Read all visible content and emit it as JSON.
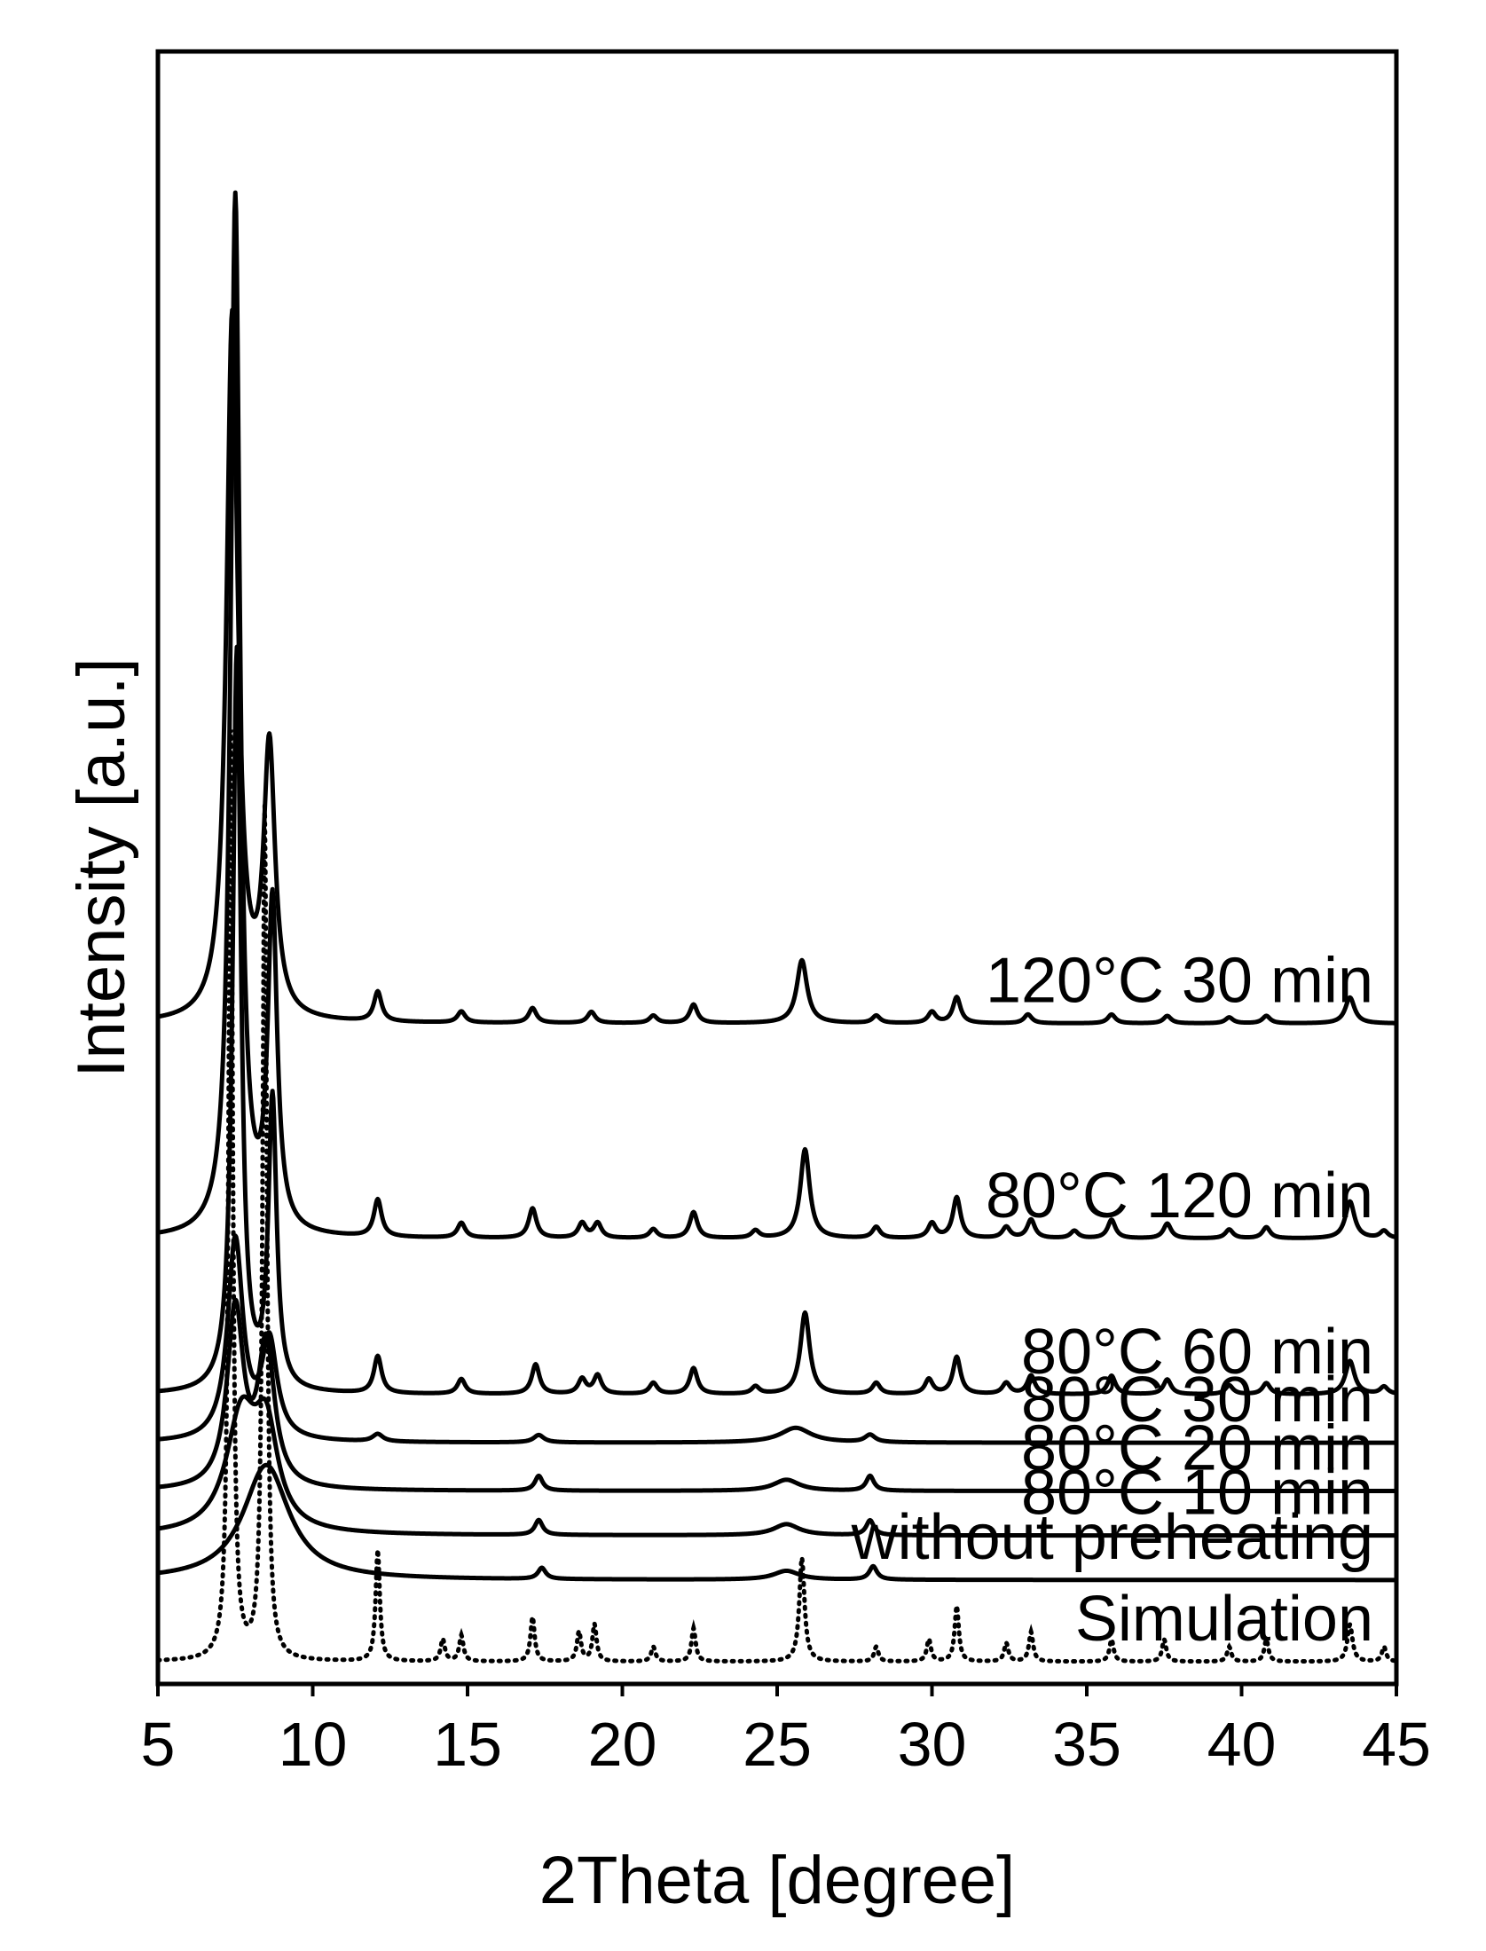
{
  "chart_data": {
    "type": "line",
    "title": "",
    "xlabel": "2Theta [degree]",
    "ylabel": "Intensity [a.u.]",
    "xlim": [
      5,
      45
    ],
    "xticks": [
      "5",
      "10",
      "15",
      "20",
      "25",
      "30",
      "35",
      "40",
      "45"
    ],
    "y_ticks_shown": false,
    "grid": false,
    "legend": "none (series labelled directly above each trace, right-aligned)",
    "series": [
      {
        "name": "120°C 30 min",
        "style": "solid",
        "baseline": 7.9,
        "peaks": [
          [
            7.4,
            9.5,
            0.22
          ],
          [
            8.6,
            3.6,
            0.22
          ],
          [
            12.1,
            0.4,
            0.15
          ],
          [
            14.8,
            0.15,
            0.15
          ],
          [
            17.1,
            0.2,
            0.15
          ],
          [
            19.0,
            0.15,
            0.15
          ],
          [
            21.0,
            0.1,
            0.15
          ],
          [
            22.3,
            0.25,
            0.15
          ],
          [
            25.8,
            0.85,
            0.2
          ],
          [
            28.2,
            0.1,
            0.15
          ],
          [
            30.0,
            0.15,
            0.15
          ],
          [
            30.8,
            0.35,
            0.15
          ],
          [
            33.1,
            0.12,
            0.15
          ],
          [
            35.8,
            0.12,
            0.15
          ],
          [
            37.6,
            0.1,
            0.15
          ],
          [
            39.6,
            0.08,
            0.15
          ],
          [
            40.8,
            0.1,
            0.15
          ],
          [
            43.5,
            0.35,
            0.18
          ]
        ]
      },
      {
        "name": "80°C 120 min",
        "style": "solid",
        "baseline": 5.0,
        "peaks": [
          [
            7.5,
            14.0,
            0.18
          ],
          [
            8.7,
            4.4,
            0.18
          ],
          [
            12.1,
            0.5,
            0.15
          ],
          [
            14.8,
            0.2,
            0.15
          ],
          [
            17.1,
            0.4,
            0.15
          ],
          [
            18.7,
            0.2,
            0.15
          ],
          [
            19.2,
            0.2,
            0.15
          ],
          [
            21.0,
            0.12,
            0.15
          ],
          [
            22.3,
            0.35,
            0.15
          ],
          [
            24.3,
            0.1,
            0.15
          ],
          [
            25.9,
            1.2,
            0.18
          ],
          [
            28.2,
            0.15,
            0.15
          ],
          [
            30.0,
            0.2,
            0.15
          ],
          [
            30.8,
            0.55,
            0.15
          ],
          [
            32.4,
            0.15,
            0.15
          ],
          [
            33.2,
            0.25,
            0.15
          ],
          [
            34.6,
            0.1,
            0.15
          ],
          [
            35.8,
            0.25,
            0.15
          ],
          [
            37.6,
            0.2,
            0.15
          ],
          [
            39.6,
            0.12,
            0.15
          ],
          [
            40.8,
            0.15,
            0.15
          ],
          [
            43.5,
            0.5,
            0.18
          ],
          [
            44.6,
            0.1,
            0.15
          ]
        ]
      },
      {
        "name": "80°C 60 min",
        "style": "solid",
        "baseline": 2.9,
        "peaks": [
          [
            7.55,
            10.0,
            0.16
          ],
          [
            8.7,
            3.9,
            0.16
          ],
          [
            12.1,
            0.5,
            0.15
          ],
          [
            14.8,
            0.2,
            0.15
          ],
          [
            17.2,
            0.4,
            0.15
          ],
          [
            18.7,
            0.2,
            0.15
          ],
          [
            19.2,
            0.25,
            0.15
          ],
          [
            21.0,
            0.15,
            0.15
          ],
          [
            22.3,
            0.35,
            0.15
          ],
          [
            24.3,
            0.1,
            0.15
          ],
          [
            25.9,
            1.1,
            0.18
          ],
          [
            28.2,
            0.15,
            0.15
          ],
          [
            29.9,
            0.2,
            0.15
          ],
          [
            30.8,
            0.5,
            0.15
          ],
          [
            32.4,
            0.15,
            0.15
          ],
          [
            33.2,
            0.25,
            0.15
          ],
          [
            35.8,
            0.25,
            0.15
          ],
          [
            37.6,
            0.2,
            0.15
          ],
          [
            39.6,
            0.12,
            0.15
          ],
          [
            40.8,
            0.15,
            0.15
          ],
          [
            43.5,
            0.45,
            0.18
          ],
          [
            44.6,
            0.1,
            0.15
          ]
        ]
      },
      {
        "name": "80°C 30 min",
        "style": "solid",
        "baseline": 2.25,
        "peaks": [
          [
            7.5,
            2.7,
            0.3
          ],
          [
            8.6,
            1.3,
            0.3
          ],
          [
            12.1,
            0.1,
            0.2
          ],
          [
            17.3,
            0.1,
            0.2
          ],
          [
            25.6,
            0.2,
            0.6
          ],
          [
            28.0,
            0.1,
            0.2
          ]
        ]
      },
      {
        "name": "80°C 20 min",
        "style": "solid",
        "baseline": 1.6,
        "peaks": [
          [
            7.5,
            2.4,
            0.32
          ],
          [
            8.5,
            1.9,
            0.32
          ],
          [
            17.3,
            0.2,
            0.15
          ],
          [
            25.3,
            0.15,
            0.5
          ],
          [
            28.0,
            0.2,
            0.15
          ]
        ]
      },
      {
        "name": "80°C 10 min",
        "style": "solid",
        "baseline": 1.0,
        "peaks": [
          [
            7.7,
            1.55,
            0.6
          ],
          [
            8.5,
            1.25,
            0.45
          ],
          [
            17.3,
            0.2,
            0.15
          ],
          [
            25.3,
            0.15,
            0.5
          ],
          [
            28.0,
            0.2,
            0.15
          ]
        ]
      },
      {
        "name": "without preheating",
        "style": "solid",
        "baseline": 0.4,
        "peaks": [
          [
            8.5,
            1.55,
            0.9
          ],
          [
            17.4,
            0.15,
            0.15
          ],
          [
            25.3,
            0.12,
            0.5
          ],
          [
            28.1,
            0.18,
            0.15
          ]
        ]
      },
      {
        "name": "Simulation",
        "style": "dotted",
        "baseline": -0.7,
        "peaks": [
          [
            7.35,
            12.5,
            0.08
          ],
          [
            8.45,
            11.5,
            0.08
          ],
          [
            12.1,
            1.5,
            0.08
          ],
          [
            14.2,
            0.3,
            0.08
          ],
          [
            14.8,
            0.35,
            0.08
          ],
          [
            17.1,
            0.6,
            0.08
          ],
          [
            18.6,
            0.4,
            0.08
          ],
          [
            19.1,
            0.5,
            0.08
          ],
          [
            21.0,
            0.2,
            0.08
          ],
          [
            22.3,
            0.45,
            0.08
          ],
          [
            25.8,
            1.4,
            0.1
          ],
          [
            28.2,
            0.2,
            0.08
          ],
          [
            29.9,
            0.3,
            0.08
          ],
          [
            30.8,
            0.75,
            0.08
          ],
          [
            32.4,
            0.25,
            0.08
          ],
          [
            33.2,
            0.4,
            0.08
          ],
          [
            35.8,
            0.3,
            0.08
          ],
          [
            37.5,
            0.3,
            0.08
          ],
          [
            39.6,
            0.2,
            0.08
          ],
          [
            40.8,
            0.3,
            0.08
          ],
          [
            43.5,
            0.5,
            0.1
          ],
          [
            44.6,
            0.2,
            0.08
          ]
        ]
      }
    ]
  }
}
